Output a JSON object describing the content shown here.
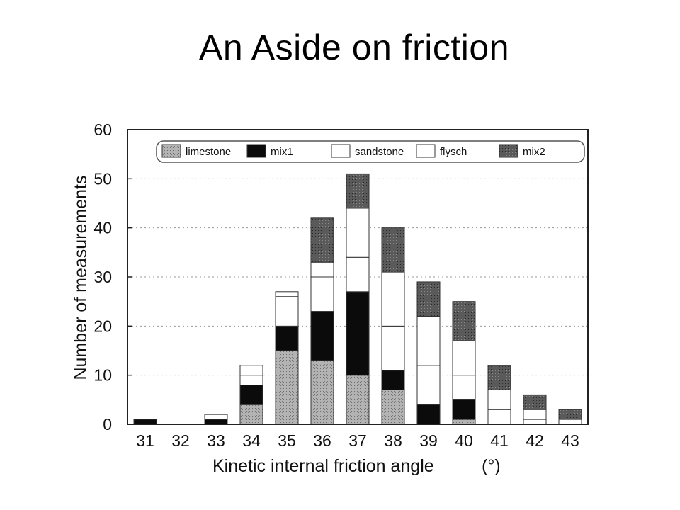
{
  "slide": {
    "title": "An Aside on friction"
  },
  "colors": {
    "limestone": "#a9a9a9",
    "mix1": "#0b0b0b",
    "sandstone": "#ffffff",
    "flysch": "#ffffff",
    "mix2": "#555555",
    "axis": "#222222",
    "grid": "#9a9a9a"
  },
  "chart_data": {
    "type": "bar",
    "stacked": true,
    "title": "",
    "xlabel": "Kinetic internal friction angle",
    "xlabel_unit": "(°)",
    "ylabel": "Number of measurements",
    "ylim": [
      0,
      60
    ],
    "yticks": [
      0,
      10,
      20,
      30,
      40,
      50,
      60
    ],
    "grid": "horizontal dotted",
    "legend_position": "top",
    "categories": [
      "31",
      "32",
      "33",
      "34",
      "35",
      "36",
      "37",
      "38",
      "39",
      "40",
      "41",
      "42",
      "43"
    ],
    "series": [
      {
        "name": "limestone",
        "values": [
          0,
          0,
          0,
          4,
          15,
          13,
          10,
          7,
          0,
          1,
          0,
          0,
          0
        ]
      },
      {
        "name": "mix1",
        "values": [
          1,
          0,
          1,
          4,
          5,
          10,
          17,
          4,
          4,
          4,
          0,
          0,
          0
        ]
      },
      {
        "name": "sandstone",
        "values": [
          0,
          0,
          0,
          2,
          6,
          7,
          7,
          9,
          8,
          5,
          3,
          1,
          1
        ]
      },
      {
        "name": "flysch",
        "values": [
          0,
          0,
          1,
          2,
          1,
          3,
          10,
          11,
          10,
          7,
          4,
          2,
          0
        ]
      },
      {
        "name": "mix2",
        "values": [
          0,
          0,
          0,
          0,
          0,
          9,
          7,
          9,
          7,
          8,
          5,
          3,
          2
        ]
      }
    ]
  }
}
